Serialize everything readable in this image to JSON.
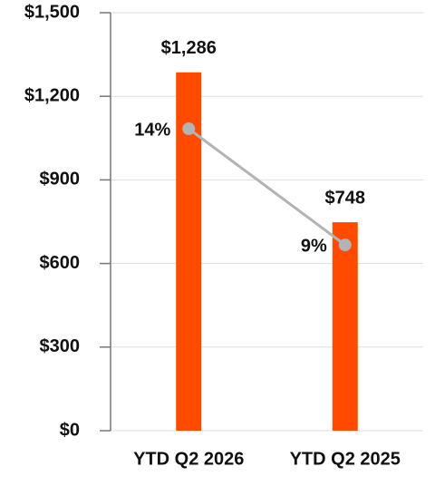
{
  "chart_data": {
    "type": "bar",
    "categories": [
      "YTD Q2 2026",
      "YTD Q2 2025"
    ],
    "series": [
      {
        "type": "bar",
        "color": "#ff4a00",
        "values": [
          1286,
          748
        ],
        "value_labels": [
          "$1,286",
          "$748"
        ]
      },
      {
        "type": "line",
        "axis": "y2",
        "color": "#b3b3b3",
        "values": [
          14,
          9
        ],
        "value_labels": [
          "14%",
          "9%"
        ]
      }
    ],
    "ylim": [
      0,
      1500
    ],
    "yticks": [
      {
        "value": 0,
        "label": "$0"
      },
      {
        "value": 300,
        "label": "$300"
      },
      {
        "value": 600,
        "label": "$600"
      },
      {
        "value": 900,
        "label": "$900"
      },
      {
        "value": 1200,
        "label": "$1,200"
      },
      {
        "value": 1500,
        "label": "$1,500"
      }
    ],
    "y2lim": [
      1,
      19
    ],
    "grid": true
  }
}
